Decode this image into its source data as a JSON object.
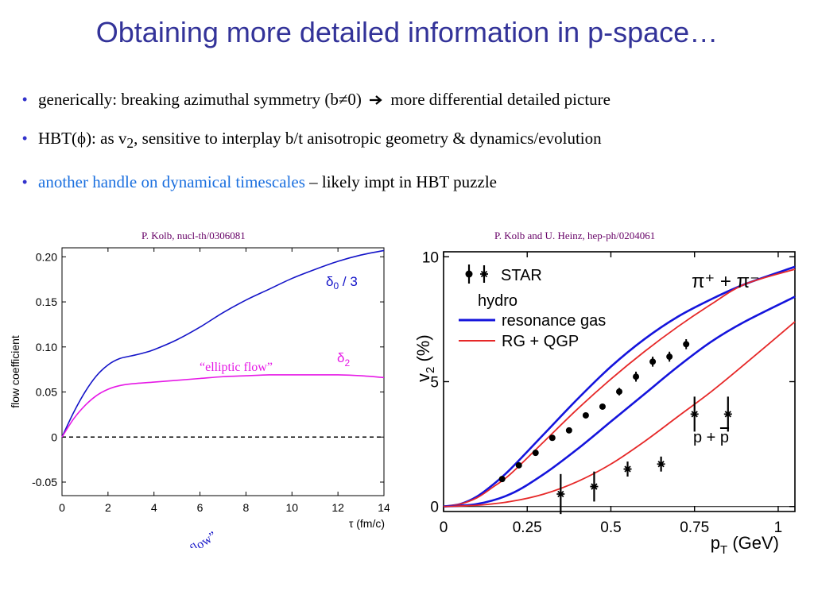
{
  "title": "Obtaining more detailed information in p-space…",
  "bullets": [
    {
      "a": "generically: breaking azimuthal symmetry (b",
      "neq": "≠",
      "b": "0)",
      "c": "more differential detailed picture"
    },
    {
      "a": "HBT(",
      "phi": "ϕ",
      "b": "): as v",
      "sub": "2",
      "c": ", sensitive to interplay b/t anisotropic geometry & dynamics/evolution"
    },
    {
      "blue": "another handle on dynamical timescales",
      "c": " – likely impt in HBT puzzle"
    }
  ],
  "citations": {
    "left": "P. Kolb, nucl-th/0306081",
    "right": "P. Kolb and U. Heinz, hep-ph/0204061"
  },
  "chart_data": [
    {
      "type": "line",
      "xlabel": "τ (fm/c)",
      "ylabel": "flow coefficient",
      "xlim": [
        0,
        14
      ],
      "ylim": [
        -0.065,
        0.21
      ],
      "xticks": [
        "0",
        "2",
        "4",
        "6",
        "8",
        "10",
        "12",
        "14"
      ],
      "yticks": [
        "-0.05",
        "0",
        "0.05",
        "0.10",
        "0.15",
        "0.20"
      ],
      "ytick_values": [
        -0.05,
        0,
        0.05,
        0.1,
        0.15,
        0.2
      ],
      "series": [
        {
          "name": "δ0 / 3",
          "label_main": "δ",
          "label_sub": "0",
          "label_tail": " / 3",
          "color": "#1414c8",
          "annotation": "“radial flow”",
          "x": [
            0,
            0.5,
            1,
            1.5,
            2,
            2.5,
            3,
            3.5,
            4,
            5,
            6,
            7,
            8,
            9,
            10,
            11,
            12,
            13,
            14
          ],
          "y": [
            0,
            0.027,
            0.05,
            0.068,
            0.08,
            0.087,
            0.09,
            0.093,
            0.097,
            0.108,
            0.122,
            0.138,
            0.152,
            0.164,
            0.176,
            0.186,
            0.195,
            0.202,
            0.207
          ]
        },
        {
          "name": "δ2",
          "label_main": "δ",
          "label_sub": "2",
          "color": "#e619e6",
          "annotation": "“elliptic flow”",
          "x": [
            0,
            0.5,
            1,
            1.5,
            2,
            2.5,
            3,
            4,
            5,
            6,
            7,
            8,
            9,
            10,
            11,
            12,
            13,
            14
          ],
          "y": [
            0,
            0.02,
            0.035,
            0.046,
            0.053,
            0.057,
            0.059,
            0.061,
            0.063,
            0.065,
            0.067,
            0.068,
            0.069,
            0.069,
            0.069,
            0.069,
            0.068,
            0.066
          ]
        }
      ],
      "reference_line": {
        "y": 0,
        "style": "dashed"
      }
    },
    {
      "type": "line",
      "xlabel_main": "p",
      "xlabel_sub": "T",
      "xlabel_tail": " (GeV)",
      "ylabel_main": "v",
      "ylabel_sub": "2",
      "ylabel_tail": " (%)",
      "xlim": [
        0,
        1.05
      ],
      "ylim": [
        -0.2,
        10.2
      ],
      "xticks": [
        "0",
        "0.25",
        "0.5",
        "0.75",
        "1"
      ],
      "xtick_values": [
        0,
        0.25,
        0.5,
        0.75,
        1
      ],
      "yticks": [
        "0",
        "5",
        "10"
      ],
      "ytick_values": [
        0,
        5,
        10
      ],
      "legend": {
        "star": "STAR",
        "hydro": "hydro",
        "resonance_gas": "resonance gas",
        "rg_qgp": "RG + QGP",
        "pion_label": "π⁺ + π⁻",
        "proton_label_a": "p + ",
        "proton_label_b": "p"
      },
      "series": [
        {
          "name": "resonance gas (π)",
          "color": "#1414dc",
          "x": [
            0,
            0.05,
            0.1,
            0.15,
            0.2,
            0.3,
            0.4,
            0.5,
            0.6,
            0.7,
            0.8,
            0.9,
            1.05
          ],
          "y": [
            0,
            0.1,
            0.4,
            0.9,
            1.5,
            2.9,
            4.3,
            5.6,
            6.7,
            7.6,
            8.3,
            8.9,
            9.6
          ]
        },
        {
          "name": "RG + QGP (π)",
          "color": "#e62828",
          "x": [
            0,
            0.05,
            0.1,
            0.15,
            0.2,
            0.3,
            0.4,
            0.5,
            0.6,
            0.7,
            0.8,
            0.9,
            1.05
          ],
          "y": [
            0,
            0.1,
            0.35,
            0.8,
            1.3,
            2.6,
            3.9,
            5.1,
            6.2,
            7.2,
            8.1,
            8.9,
            9.5
          ]
        },
        {
          "name": "resonance gas (p)",
          "color": "#1414dc",
          "x": [
            0,
            0.1,
            0.2,
            0.3,
            0.4,
            0.5,
            0.6,
            0.7,
            0.8,
            0.9,
            1.05
          ],
          "y": [
            0,
            0.1,
            0.5,
            1.3,
            2.3,
            3.4,
            4.5,
            5.6,
            6.6,
            7.4,
            8.4
          ]
        },
        {
          "name": "RG + QGP (p)",
          "color": "#e62828",
          "x": [
            0,
            0.1,
            0.2,
            0.3,
            0.4,
            0.5,
            0.6,
            0.7,
            0.8,
            0.9,
            1.05
          ],
          "y": [
            0,
            0.05,
            0.2,
            0.5,
            1.0,
            1.7,
            2.6,
            3.6,
            4.6,
            5.7,
            7.4
          ]
        }
      ],
      "points": {
        "pions": {
          "x": [
            0.175,
            0.225,
            0.275,
            0.325,
            0.375,
            0.425,
            0.475,
            0.525,
            0.575,
            0.625,
            0.675,
            0.725
          ],
          "y": [
            1.1,
            1.65,
            2.15,
            2.75,
            3.05,
            3.65,
            4.0,
            4.6,
            5.2,
            5.8,
            6.0,
            6.5
          ],
          "err": [
            0.1,
            0.1,
            0.1,
            0.1,
            0.1,
            0.1,
            0.1,
            0.15,
            0.2,
            0.2,
            0.2,
            0.2
          ]
        },
        "protons": {
          "x": [
            0.35,
            0.45,
            0.55,
            0.65,
            0.75,
            0.85
          ],
          "y": [
            0.5,
            0.8,
            1.5,
            1.7,
            3.7,
            3.7
          ],
          "err": [
            0.8,
            0.6,
            0.3,
            0.3,
            0.7,
            0.7
          ]
        }
      },
      "reference_line": {
        "y": 0,
        "style": "solid"
      }
    }
  ]
}
